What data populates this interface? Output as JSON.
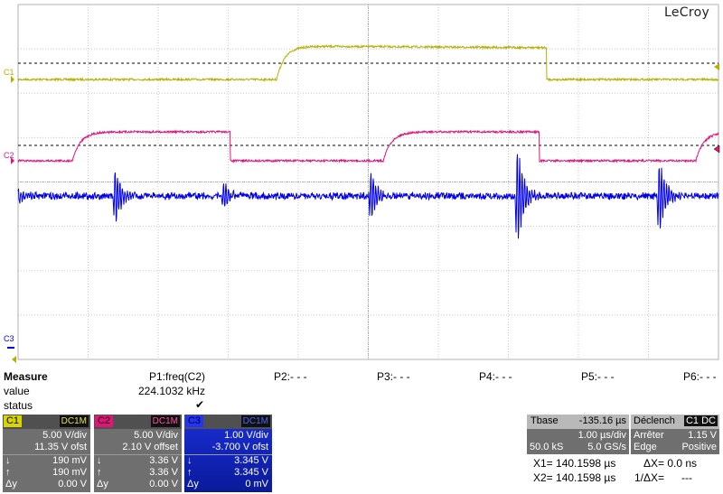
{
  "brand": "LeCroy",
  "grid": {
    "divisions_x": 10,
    "divisions_y": 8
  },
  "traces": [
    {
      "name": "C1",
      "color": "#b5b000",
      "label": "C1"
    },
    {
      "name": "C2",
      "color": "#e0157a",
      "label": "C2"
    },
    {
      "name": "C3",
      "color": "#0000ee",
      "label": "C3"
    }
  ],
  "measure": {
    "title": "Measure",
    "row_value": "value",
    "row_status": "status",
    "p1": {
      "label": "P1:freq(C2)",
      "value": "224.1032 kHz",
      "status": "✔"
    },
    "p2": "P2:- - -",
    "p3": "P3:- - -",
    "p4": "P4:- - -",
    "p5": "P5:- - -",
    "p6": "P6:- - -"
  },
  "channels": [
    {
      "tag": "C1",
      "tag_color": "#d8d400",
      "coupling": "DC1M",
      "coupling_color": "#e0e060",
      "vdiv": "5.00 V/div",
      "offset": "11.35 V ofst",
      "down_sym": "↓",
      "down": "190 mV",
      "up_sym": "↑",
      "up": "190 mV",
      "dy_sym": "Δy",
      "dy": "0.00 V"
    },
    {
      "tag": "C2",
      "tag_color": "#e0157a",
      "coupling": "DC1M",
      "coupling_color": "#ff4fa0",
      "vdiv": "5.00 V/div",
      "offset": "2.10 V offset",
      "down_sym": "↓",
      "down": "3.36 V",
      "up_sym": "↑",
      "up": "3.36 V",
      "dy_sym": "Δy",
      "dy": "0.00 V"
    },
    {
      "tag": "C3",
      "tag_color": "#2233ff",
      "coupling": "DC1M",
      "coupling_color": "#4a66ff",
      "vdiv": "1.00 V/div",
      "offset": "-3.700 V ofst",
      "down_sym": "↓",
      "down": "3.345 V",
      "up_sym": "↑",
      "up": "3.345 V",
      "dy_sym": "Δy",
      "dy": "0 mV"
    }
  ],
  "timebase": {
    "label": "Tbase",
    "value": "-135.16 µs",
    "tdiv": "1.00 µs/div",
    "samples": "50.0 kS",
    "rate": "5.0 GS/s"
  },
  "trigger": {
    "label": "Déclench",
    "source": "C1 DC",
    "mode": "Arrêter",
    "level": "1.15 V",
    "type": "Edge",
    "slope": "Positive"
  },
  "cursors": {
    "x1": "X1= 140.1598 µs",
    "dx": "ΔX= 0.0 ns",
    "x2": "X2= 140.1598 µs",
    "inv_dx": "1/ΔX=",
    "inv_dx_val": "---"
  }
}
